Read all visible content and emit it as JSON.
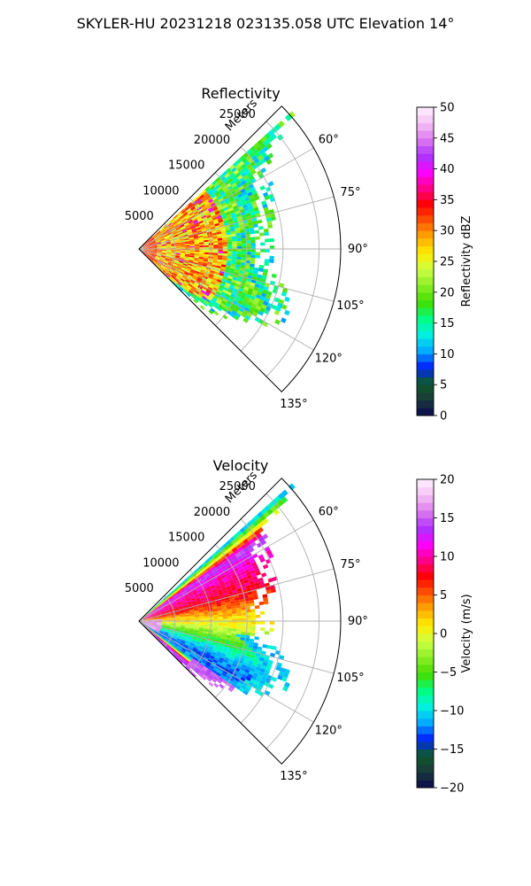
{
  "figure": {
    "suptitle": "SKYLER-HU  20231218  023135.058 UTC Elevation 14°"
  },
  "chart_data": [
    {
      "type": "heatmap",
      "subtype": "polar-sector",
      "title": "Reflectivity",
      "radial_label": "Meters",
      "radial_ticks": [
        5000,
        10000,
        15000,
        20000,
        25000
      ],
      "radial_max": 28000,
      "angular_ticks": [
        "60°",
        "75°",
        "90°",
        "105°",
        "120°",
        "135°"
      ],
      "angular_range": [
        45,
        135
      ],
      "grid": true,
      "colorbar": {
        "label": "Reflectivity dBZ",
        "range": [
          0,
          50
        ],
        "ticks": [
          0,
          5,
          10,
          15,
          20,
          25,
          30,
          35,
          40,
          45,
          50
        ],
        "colormap": [
          "#0a0a50",
          "#1a3a3a",
          "#0d5a2a",
          "#0022ff",
          "#00aaff",
          "#00f0e0",
          "#00ff80",
          "#44dd00",
          "#88ee22",
          "#ccff44",
          "#ffee00",
          "#ffaa00",
          "#ff5500",
          "#ff0000",
          "#ff0088",
          "#ff00ff",
          "#aa33ff",
          "#dd77ee",
          "#f5c0f5",
          "#fff0ff"
        ]
      },
      "field": {
        "max_range_by_azimuth": [
          [
            48,
            26000
          ],
          [
            52,
            21000
          ],
          [
            58,
            18000
          ],
          [
            66,
            17500
          ],
          [
            74,
            17000
          ],
          [
            82,
            15500
          ],
          [
            90,
            16000
          ],
          [
            98,
            15500
          ],
          [
            105,
            18500
          ],
          [
            115,
            20000
          ],
          [
            122,
            17000
          ],
          [
            130,
            11000
          ],
          [
            135,
            7000
          ]
        ],
        "core_range": [
          2000,
          12000
        ],
        "core_dbz": 28,
        "edge_dbz": 18
      }
    },
    {
      "type": "heatmap",
      "subtype": "polar-sector",
      "title": "Velocity",
      "radial_label": "Meters",
      "radial_ticks": [
        5000,
        10000,
        15000,
        20000,
        25000
      ],
      "radial_max": 28000,
      "angular_ticks": [
        "60°",
        "75°",
        "90°",
        "105°",
        "120°",
        "135°"
      ],
      "angular_range": [
        45,
        135
      ],
      "grid": true,
      "colorbar": {
        "label": "Velocity (m/s)",
        "range": [
          -20,
          20
        ],
        "ticks": [
          -20,
          -15,
          -10,
          -5,
          0,
          5,
          10,
          15,
          20
        ],
        "colormap": [
          "#0a0a50",
          "#1a3a3a",
          "#0d5a2a",
          "#0022ff",
          "#00aaff",
          "#00f0e0",
          "#00ff80",
          "#44dd00",
          "#88ee22",
          "#ccff44",
          "#ffee00",
          "#ffaa00",
          "#ff5500",
          "#ff0000",
          "#ff0088",
          "#ff00ff",
          "#aa33ff",
          "#dd77ee",
          "#f5c0f5",
          "#fff0ff"
        ]
      },
      "field": {
        "max_range_by_azimuth": [
          [
            48,
            26000
          ],
          [
            52,
            21000
          ],
          [
            58,
            18000
          ],
          [
            66,
            17500
          ],
          [
            74,
            17000
          ],
          [
            82,
            15500
          ],
          [
            90,
            16000
          ],
          [
            98,
            15500
          ],
          [
            105,
            18500
          ],
          [
            115,
            20000
          ],
          [
            122,
            17000
          ],
          [
            130,
            11000
          ],
          [
            135,
            7000
          ]
        ],
        "velocity_by_azimuth": [
          [
            48,
            -10
          ],
          [
            55,
            14
          ],
          [
            62,
            10
          ],
          [
            70,
            9
          ],
          [
            78,
            6
          ],
          [
            86,
            2
          ],
          [
            92,
            0
          ],
          [
            98,
            -3
          ],
          [
            105,
            -7
          ],
          [
            112,
            -11
          ],
          [
            118,
            -13
          ],
          [
            125,
            -12
          ],
          [
            130,
            14
          ],
          [
            135,
            14
          ]
        ]
      }
    }
  ]
}
